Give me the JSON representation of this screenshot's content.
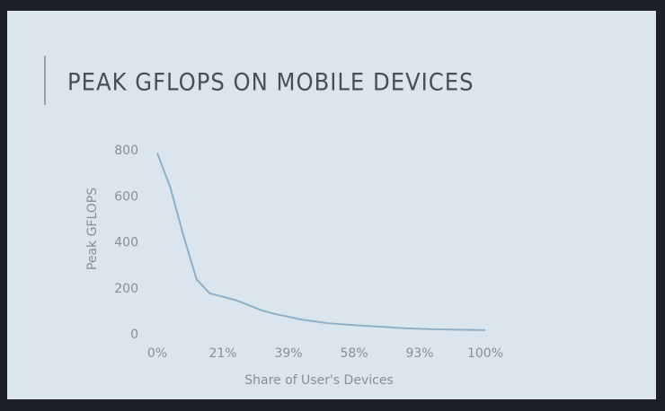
{
  "chart_data": {
    "type": "line",
    "title": "PEAK GFLOPS ON MOBILE DEVICES",
    "x_label": "Share of User's Devices",
    "y_label": "Peak GFLOPS",
    "categories": [
      "0%",
      null,
      null,
      null,
      null,
      "21%",
      null,
      null,
      null,
      null,
      "39%",
      null,
      null,
      null,
      null,
      "58%",
      null,
      null,
      null,
      null,
      "93%",
      null,
      null,
      null,
      null,
      "100%"
    ],
    "values": [
      790,
      640,
      430,
      240,
      180,
      165,
      150,
      128,
      105,
      90,
      78,
      66,
      58,
      50,
      46,
      42,
      38,
      35,
      31,
      28,
      26,
      24,
      23,
      22,
      21,
      20
    ],
    "color": "#8fb0c6",
    "ylim": [
      0,
      800
    ],
    "yticks": [
      0,
      200,
      400,
      600,
      800
    ]
  }
}
